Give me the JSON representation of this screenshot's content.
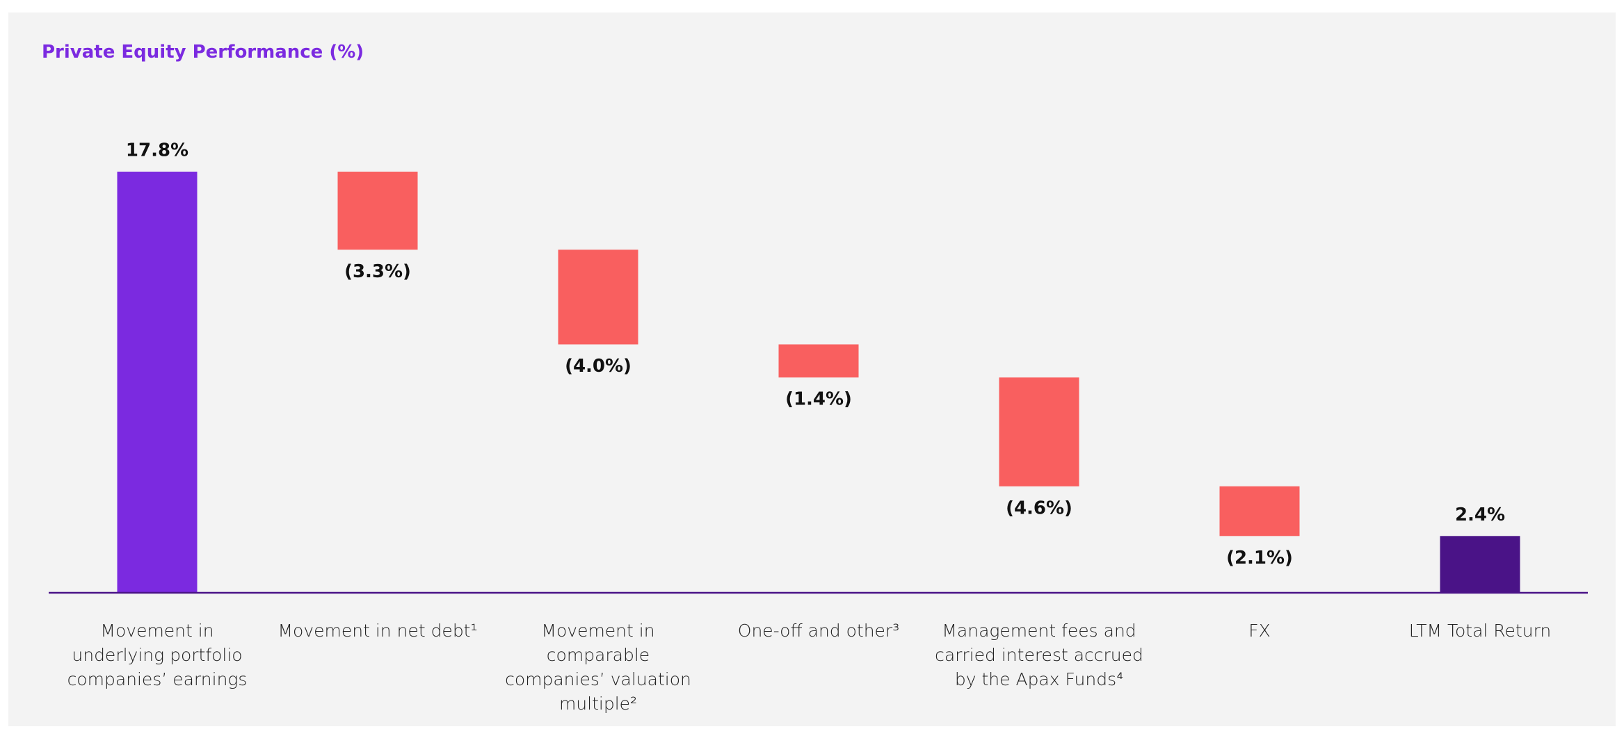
{
  "chart_data": {
    "type": "waterfall",
    "title": "Private Equity Performance (%)",
    "categories": [
      "Movement in underlying portfolio companies’ earnings",
      "Movement in net debt¹",
      "Movement in comparable companies’ valuation multiple²",
      "One-off and other³",
      "Management fees and carried interest accrued by the Apax Funds⁴",
      "FX",
      "LTM Total Return"
    ],
    "values": [
      17.8,
      -3.3,
      -4.0,
      -1.4,
      -4.6,
      -2.1,
      2.4
    ],
    "value_labels": [
      "17.8%",
      "(3.3%)",
      "(4.0%)",
      "(1.4%)",
      "(4.6%)",
      "(2.1%)",
      "2.4%"
    ],
    "measure": [
      "absolute",
      "relative",
      "relative",
      "relative",
      "relative",
      "relative",
      "total"
    ],
    "colors": [
      "#7b2ae0",
      "#f95f5f",
      "#f95f5f",
      "#f95f5f",
      "#f95f5f",
      "#f95f5f",
      "#4a1387"
    ]
  }
}
